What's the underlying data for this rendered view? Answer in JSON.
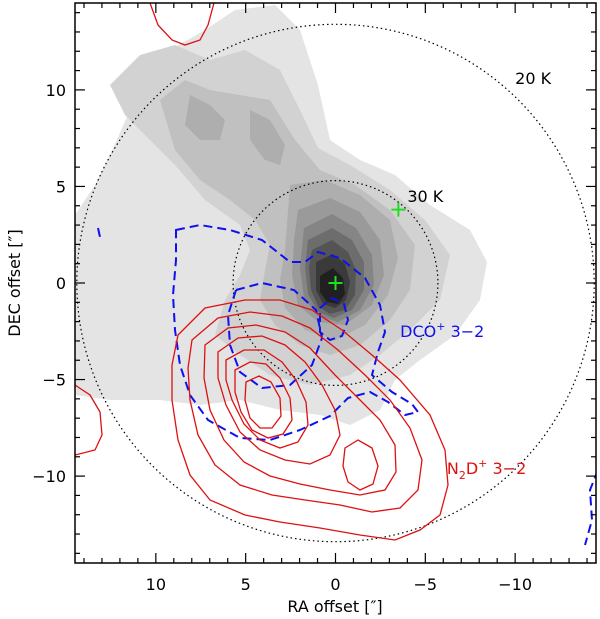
{
  "chart_data": {
    "type": "contour",
    "xlabel": "RA offset [″]",
    "ylabel": "DEC offset [″]",
    "xlim": [
      14.5,
      -14.5
    ],
    "ylim": [
      -14.5,
      14.5
    ],
    "x_ticks": [
      10,
      5,
      0,
      -5,
      -10
    ],
    "x_tick_labels": [
      "10",
      "5",
      "0",
      "−5",
      "−10"
    ],
    "y_ticks": [
      10,
      5,
      0,
      -5,
      -10
    ],
    "y_tick_labels": [
      "10",
      "5",
      "0",
      "−5",
      "−10"
    ],
    "annotations": [
      {
        "text": "20 K",
        "x": -10.0,
        "y": 10.3,
        "color": "#000000"
      },
      {
        "text": "30 K",
        "x": -4.0,
        "y": 4.2,
        "color": "#000000"
      },
      {
        "text_main": "DCO",
        "text_sup": "+",
        "text_tail": " 3−2",
        "x": -3.6,
        "y": -2.8,
        "color": "#1010ee"
      },
      {
        "text_main": "N",
        "text_sub": "2",
        "text_mid": "D",
        "text_sup": "+",
        "text_tail": " 3−2",
        "x": -6.2,
        "y": -9.9,
        "color": "#dd1111"
      }
    ],
    "temperature_circles": [
      {
        "label": "20 K",
        "center": [
          0,
          0
        ],
        "radius": 14.4
      },
      {
        "label": "30 K",
        "center": [
          0,
          0
        ],
        "radius": 5.7
      }
    ],
    "markers": [
      {
        "type": "cross",
        "x": 0,
        "y": 0,
        "color": "#22dd22"
      },
      {
        "type": "cross",
        "x": -3.5,
        "y": 3.8,
        "color": "#22dd22"
      }
    ],
    "series": [
      {
        "name": "continuum (grayscale)",
        "style": "filled",
        "peak": [
          0.2,
          -1.2
        ]
      },
      {
        "name": "DCO+ 3-2",
        "style": "dashed",
        "color": "#1010ee"
      },
      {
        "name": "N2D+ 3-2",
        "style": "solid",
        "color": "#dd1111",
        "peaks": [
          [
            3.6,
            -7.2
          ],
          [
            -1.0,
            -9.4
          ]
        ]
      }
    ]
  }
}
